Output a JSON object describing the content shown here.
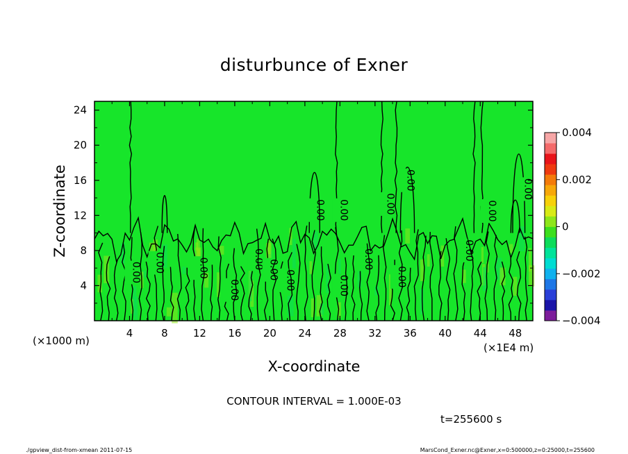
{
  "chart_data": {
    "type": "heatmap",
    "title": "disturbunce of Exner",
    "xlabel": "X-coordinate",
    "ylabel": "Z-coordinate",
    "x_unit_left": "(×1000 m)",
    "x_unit_right": "(×1E4 m)",
    "xlim": [
      0,
      50
    ],
    "ylim": [
      0,
      25
    ],
    "x_ticks": [
      4,
      8,
      12,
      16,
      20,
      24,
      28,
      32,
      36,
      40,
      44,
      48
    ],
    "y_ticks": [
      4,
      8,
      12,
      16,
      20,
      24
    ],
    "contour_interval_text": "CONTOUR INTERVAL = 1.000E-03",
    "contour_label": "0.00",
    "time_text": "t=255600 s",
    "colorbar": {
      "range": [
        -0.004,
        0.004
      ],
      "tick_labels": [
        "0.004",
        "0.002",
        "0",
        "−0.002",
        "−0.004"
      ],
      "colors": [
        "#7d1d9b",
        "#1a14a8",
        "#2a3fd8",
        "#1e77e6",
        "#10b1ee",
        "#00dcd2",
        "#00e39a",
        "#0ddc5a",
        "#3cdf1e",
        "#8ee61a",
        "#d8ea16",
        "#f7d10a",
        "#f7a80a",
        "#f47b0a",
        "#ef3a10",
        "#e8141a",
        "#f46a6a",
        "#f6a6a6"
      ]
    },
    "field_color": "#17e52a",
    "contour_labels": [
      {
        "x": 4.0,
        "z": 5.5
      },
      {
        "x": 6.7,
        "z": 6.6
      },
      {
        "x": 11.7,
        "z": 6.0
      },
      {
        "x": 15.2,
        "z": 3.5
      },
      {
        "x": 18.0,
        "z": 7.0
      },
      {
        "x": 19.7,
        "z": 5.8
      },
      {
        "x": 21.6,
        "z": 4.6
      },
      {
        "x": 25.0,
        "z": 12.6
      },
      {
        "x": 27.7,
        "z": 12.6
      },
      {
        "x": 27.7,
        "z": 4.0
      },
      {
        "x": 30.5,
        "z": 7.0
      },
      {
        "x": 33.0,
        "z": 13.3
      },
      {
        "x": 35.3,
        "z": 16.0
      },
      {
        "x": 34.3,
        "z": 5.0
      },
      {
        "x": 42.0,
        "z": 8.0
      },
      {
        "x": 44.6,
        "z": 12.5
      },
      {
        "x": 48.7,
        "z": 15.0
      }
    ]
  },
  "footer": {
    "left": "./gpview_dist-from-xmean  2011-07-15",
    "right": "MarsCond_Exner.nc@Exner,x=0:500000,z=0:25000,t=255600"
  }
}
